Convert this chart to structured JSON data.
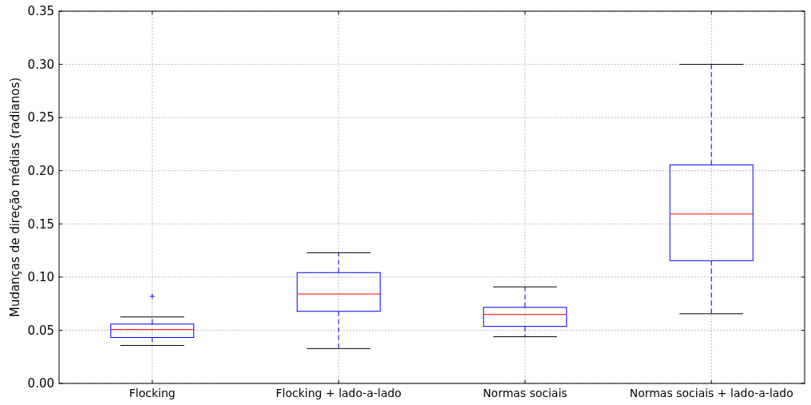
{
  "chart_data": {
    "type": "box",
    "ylabel": "Mudanças de direção médias (radianos)",
    "categories": [
      "Flocking",
      "Flocking + lado-a-lado",
      "Normas sociais",
      "Normas sociais + lado-a-lado"
    ],
    "boxes": [
      {
        "low": 0.0357,
        "q1": 0.0432,
        "median": 0.0506,
        "q3": 0.0558,
        "high": 0.0625,
        "outliers": [
          0.0819
        ]
      },
      {
        "low": 0.0328,
        "q1": 0.0678,
        "median": 0.0841,
        "q3": 0.1042,
        "high": 0.1229
      },
      {
        "low": 0.0439,
        "q1": 0.0536,
        "median": 0.0648,
        "q3": 0.0715,
        "high": 0.0908
      },
      {
        "low": 0.0655,
        "q1": 0.1154,
        "median": 0.1593,
        "q3": 0.2055,
        "high": 0.3
      }
    ],
    "color": "#0000ff",
    "ylim": [
      0,
      0.35
    ],
    "yticks": [
      {
        "value": 0,
        "label": "0.00"
      },
      {
        "value": 0.05,
        "label": "0.05"
      },
      {
        "value": 0.1,
        "label": "0.10"
      },
      {
        "value": 0.15,
        "label": "0.15"
      },
      {
        "value": 0.2,
        "label": "0.20"
      },
      {
        "value": 0.25,
        "label": "0.25"
      },
      {
        "value": 0.3,
        "label": "0.30"
      },
      {
        "value": 0.35,
        "label": "0.35"
      }
    ],
    "grid": true,
    "line_style": "dashed",
    "marker": "cross"
  }
}
